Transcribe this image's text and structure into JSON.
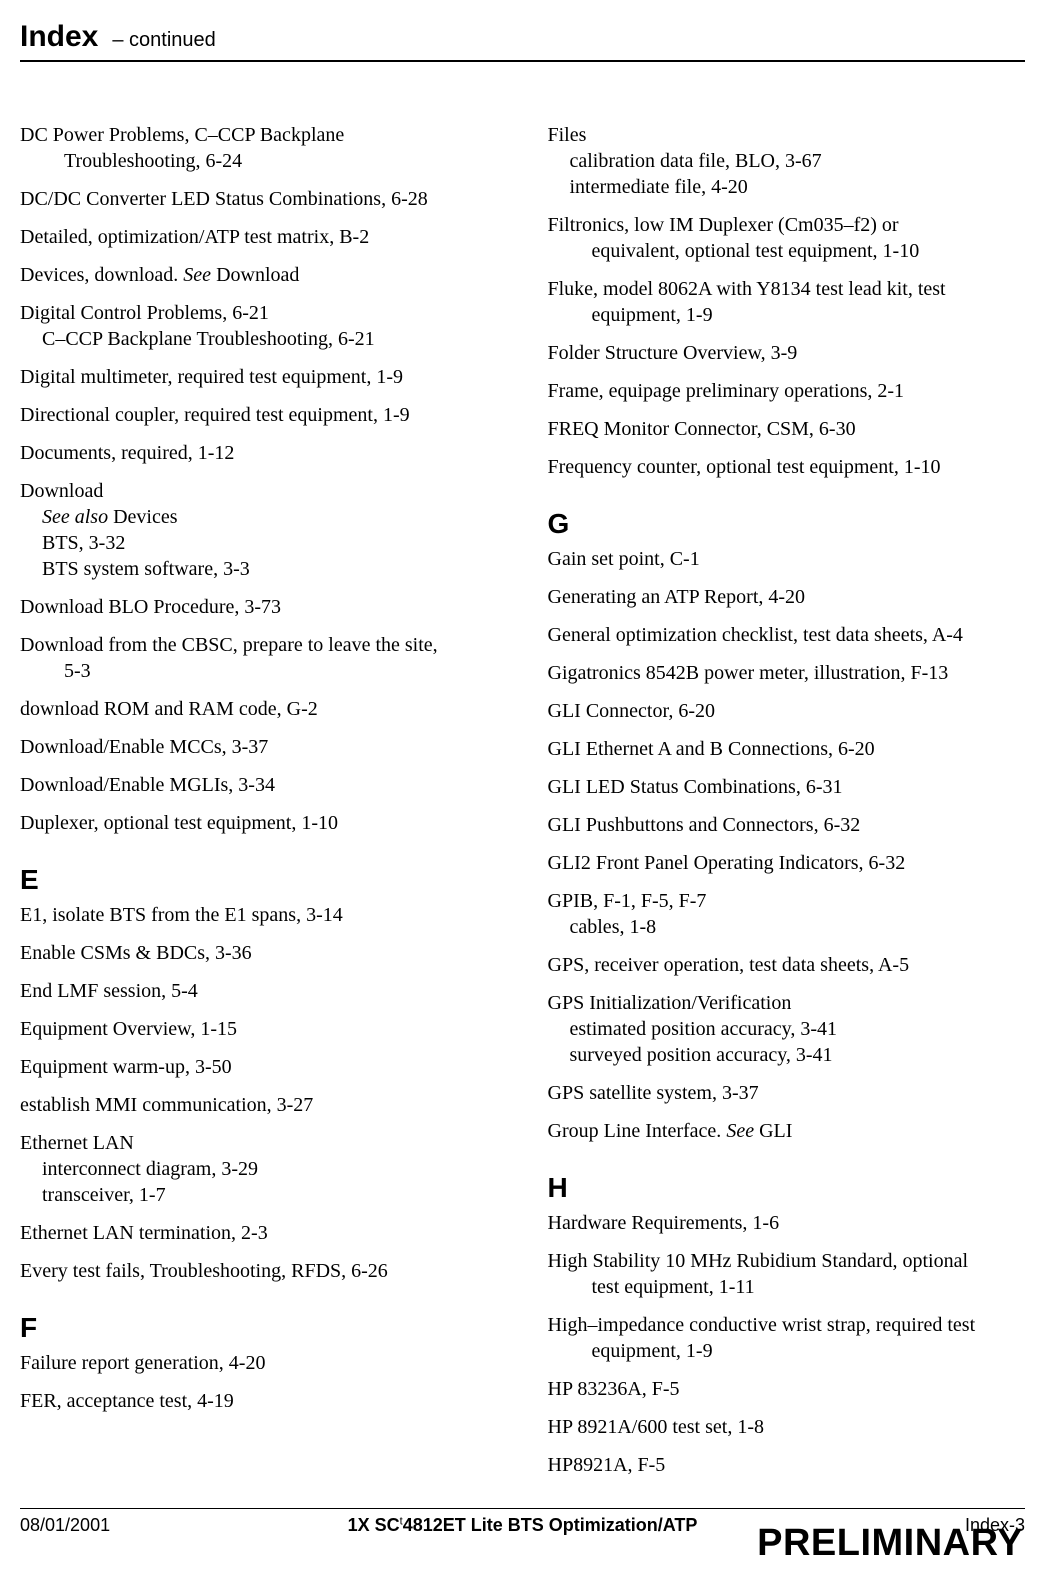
{
  "header": {
    "title": "Index",
    "subtitle": "– continued"
  },
  "left": {
    "e1": {
      "l1": "DC Power Problems, C–CCP Backplane",
      "l2": "Troubleshooting, 6-24"
    },
    "e2": "DC/DC Converter LED Status Combinations, 6-28",
    "e3": "Detailed, optimization/ATP test matrix, B-2",
    "e4": {
      "t1": "Devices, download. ",
      "see": "See",
      "t2": " Download"
    },
    "e5": {
      "l1": "Digital Control Problems, 6-21",
      "l2": "C–CCP Backplane Troubleshooting, 6-21"
    },
    "e6": "Digital multimeter, required test equipment, 1-9",
    "e7": "Directional coupler, required test equipment, 1-9",
    "e8": "Documents, required, 1-12",
    "e9": {
      "l1": "Download",
      "see": "See also",
      "l2a": " Devices",
      "l3": "BTS, 3-32",
      "l4": "BTS system software, 3-3"
    },
    "e10": "Download BLO Procedure, 3-73",
    "e11": {
      "l1": "Download from the CBSC, prepare to leave the site,",
      "l2": "5-3"
    },
    "e12": "download ROM and RAM code, G-2",
    "e13": "Download/Enable MCCs, 3-37",
    "e14": "Download/Enable MGLIs, 3-34",
    "e15": "Duplexer, optional test equipment, 1-10",
    "secE": "E",
    "e16": "E1, isolate BTS from the E1 spans, 3-14",
    "e17": "Enable CSMs & BDCs, 3-36",
    "e18": "End LMF session, 5-4",
    "e19": "Equipment Overview, 1-15",
    "e20": "Equipment warm-up, 3-50",
    "e21": "establish MMI communication, 3-27",
    "e22": {
      "l1": "Ethernet LAN",
      "l2": "interconnect diagram, 3-29",
      "l3": "transceiver, 1-7"
    },
    "e23": "Ethernet LAN termination, 2-3",
    "e24": "Every test fails, Troubleshooting, RFDS, 6-26",
    "secF": "F",
    "e25": "Failure report generation, 4-20",
    "e26": "FER, acceptance test, 4-19"
  },
  "right": {
    "r1": {
      "l1": "Files",
      "l2": "calibration data file, BLO, 3-67",
      "l3": "intermediate file, 4-20"
    },
    "r2": {
      "l1": "Filtronics, low IM Duplexer (Cm035–f2) or",
      "l2": "equivalent, optional test equipment, 1-10"
    },
    "r3": {
      "l1": "Fluke, model 8062A with Y8134 test lead kit, test",
      "l2": "equipment, 1-9"
    },
    "r4": "Folder Structure Overview, 3-9",
    "r5": "Frame, equipage preliminary operations, 2-1",
    "r6": "FREQ Monitor Connector, CSM, 6-30",
    "r7": "Frequency counter, optional test equipment, 1-10",
    "secG": "G",
    "r8": "Gain set point, C-1",
    "r9": "Generating an ATP Report, 4-20",
    "r10": "General optimization checklist, test data sheets, A-4",
    "r11": "Gigatronics 8542B power meter, illustration, F-13",
    "r12": "GLI Connector, 6-20",
    "r13": "GLI Ethernet A and B Connections, 6-20",
    "r14": "GLI LED Status Combinations, 6-31",
    "r15": "GLI Pushbuttons and Connectors, 6-32",
    "r16": "GLI2 Front Panel Operating Indicators, 6-32",
    "r17": {
      "l1": "GPIB, F-1, F-5, F-7",
      "l2": "cables, 1-8"
    },
    "r18": "GPS, receiver operation, test data sheets, A-5",
    "r19": {
      "l1": "GPS Initialization/Verification",
      "l2": "estimated position accuracy, 3-41",
      "l3": "surveyed position accuracy, 3-41"
    },
    "r20": "GPS satellite system, 3-37",
    "r21": {
      "t1": "Group Line Interface. ",
      "see": "See",
      "t2": " GLI"
    },
    "secH": "H",
    "r22": "Hardware Requirements, 1-6",
    "r23": {
      "l1": "High Stability 10 MHz Rubidium Standard, optional",
      "l2": "test equipment, 1-11"
    },
    "r24": {
      "l1": "High–impedance conductive wrist strap, required test",
      "l2": "equipment, 1-9"
    },
    "r25": "HP 83236A, F-5",
    "r26": "HP 8921A/600 test set, 1-8",
    "r27": "HP8921A, F-5"
  },
  "footer": {
    "date": "08/01/2001",
    "doc_pre": "1X SC",
    "tm": "t",
    "doc_post": "4812ET Lite BTS Optimization/ATP",
    "page": "Index-3",
    "watermark": "PRELIMINARY"
  },
  "style": {
    "body_font": "Times New Roman",
    "heading_font": "Arial",
    "text_color": "#000000",
    "bg_color": "#ffffff",
    "title_fontsize": 30,
    "subtitle_fontsize": 20,
    "body_fontsize": 20,
    "section_letter_fontsize": 28,
    "footer_fontsize": 18,
    "watermark_fontsize": 38,
    "rule_color": "#000000",
    "header_rule_width": 2.5,
    "footer_rule_width": 1
  }
}
